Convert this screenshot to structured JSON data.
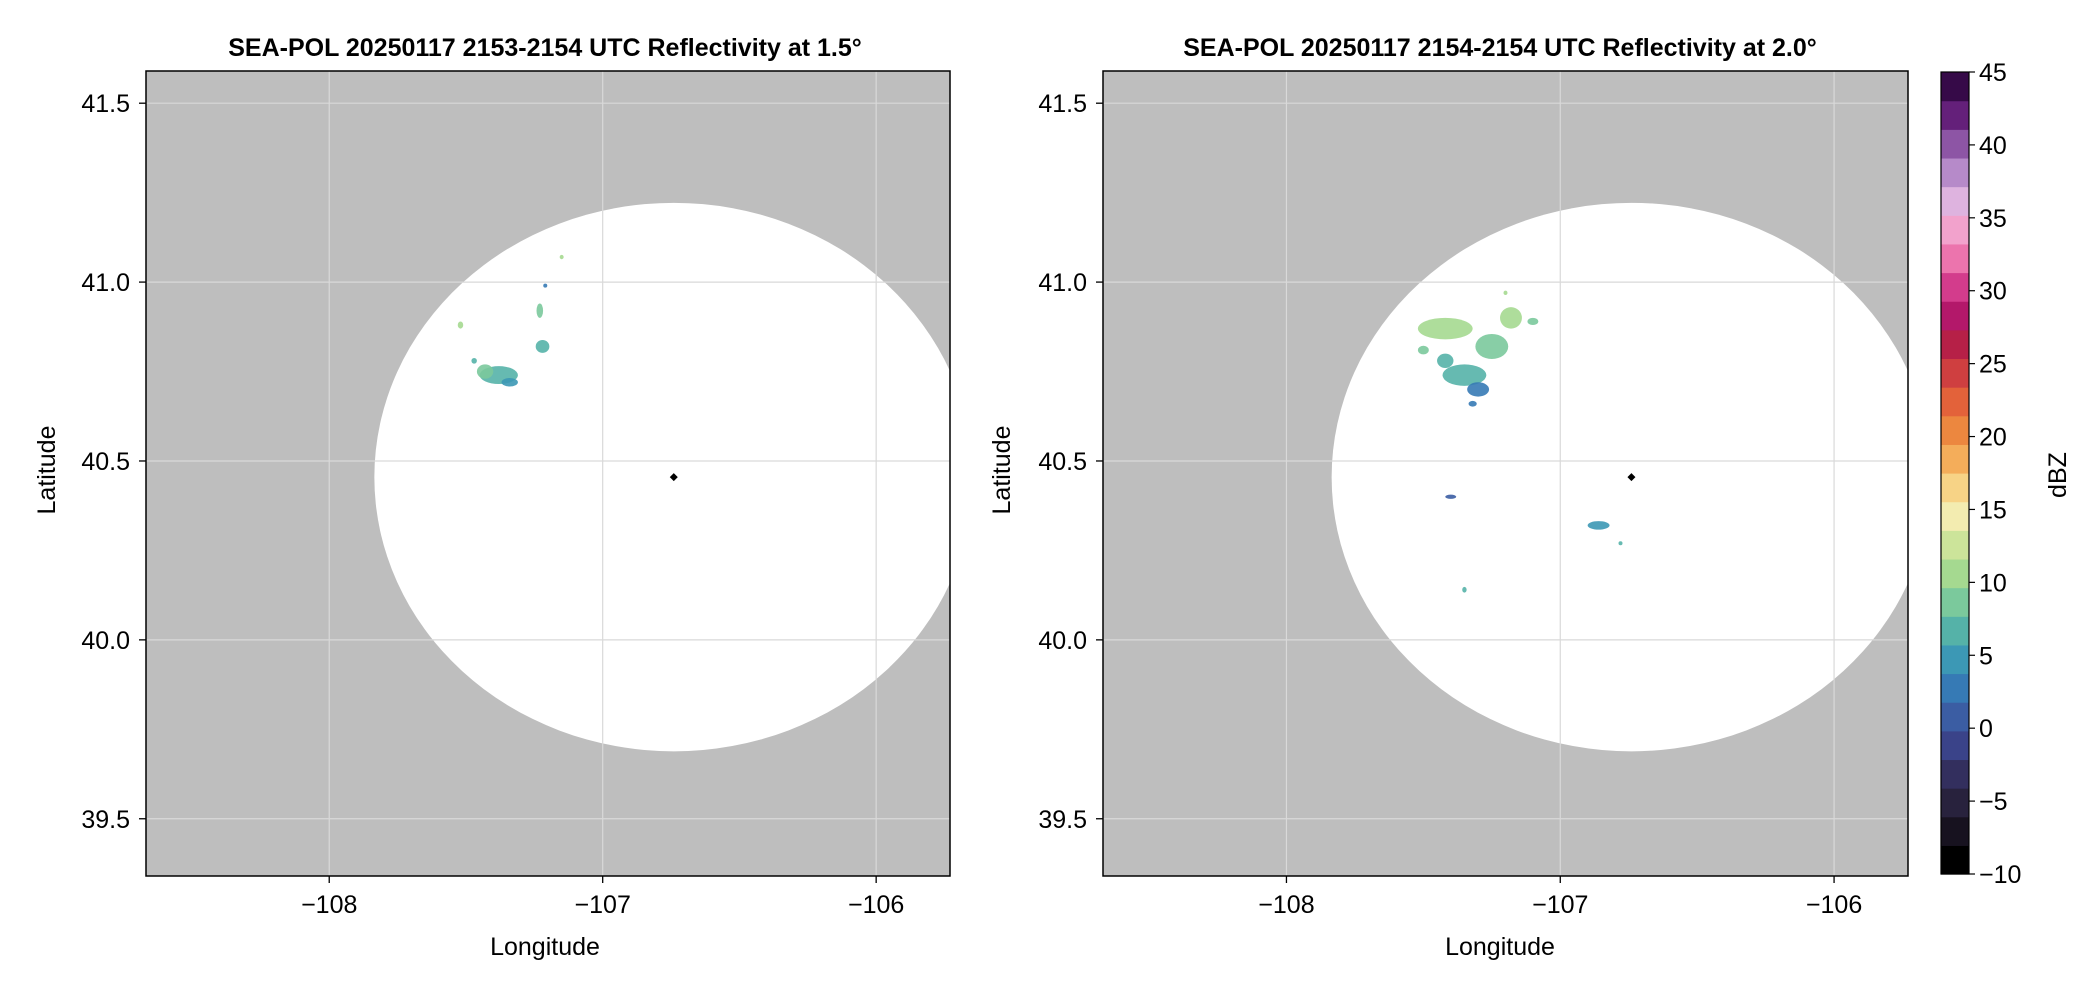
{
  "chart_data": [
    {
      "type": "heatmap",
      "title": "SEA-POL 20250117 2153-2154 UTC Reflectivity at 1.5°",
      "xlabel": "Longitude",
      "ylabel": "Latitude",
      "xlim": [
        -108.67,
        -105.73
      ],
      "ylim": [
        39.34,
        41.59
      ],
      "xticks": [
        -108,
        -107,
        -106
      ],
      "xtick_labels": [
        "−108",
        "−107",
        "−106"
      ],
      "yticks": [
        39.5,
        40.0,
        40.5,
        41.0,
        41.5
      ],
      "ytick_labels": [
        "39.5",
        "40.0",
        "40.5",
        "41.0",
        "41.5"
      ],
      "grid": true,
      "coverage": {
        "center_lon": -106.74,
        "center_lat": 40.455,
        "radius_deg": 1.095
      },
      "radar_site": {
        "lon": -106.74,
        "lat": 40.455
      },
      "echoes": [
        {
          "lon": -107.38,
          "lat": 40.74,
          "rlon": 0.07,
          "rlat": 0.025,
          "dbz": 11
        },
        {
          "lon": -107.43,
          "lat": 40.75,
          "rlon": 0.03,
          "rlat": 0.02,
          "dbz": 13
        },
        {
          "lon": -107.34,
          "lat": 40.72,
          "rlon": 0.03,
          "rlat": 0.012,
          "dbz": 8
        },
        {
          "lon": -107.22,
          "lat": 40.82,
          "rlon": 0.025,
          "rlat": 0.018,
          "dbz": 12
        },
        {
          "lon": -107.23,
          "lat": 40.92,
          "rlon": 0.012,
          "rlat": 0.02,
          "dbz": 13
        },
        {
          "lon": -107.52,
          "lat": 40.88,
          "rlon": 0.01,
          "rlat": 0.01,
          "dbz": 15
        },
        {
          "lon": -107.47,
          "lat": 40.78,
          "rlon": 0.01,
          "rlat": 0.008,
          "dbz": 10
        },
        {
          "lon": -107.15,
          "lat": 41.07,
          "rlon": 0.006,
          "rlat": 0.006,
          "dbz": 17
        },
        {
          "lon": -107.21,
          "lat": 40.99,
          "rlon": 0.005,
          "rlat": 0.005,
          "dbz": 7
        }
      ]
    },
    {
      "type": "heatmap",
      "title": "SEA-POL 20250117 2154-2154 UTC Reflectivity at 2.0°",
      "xlabel": "Longitude",
      "ylabel": "",
      "xlim": [
        -108.67,
        -105.73
      ],
      "ylim": [
        39.34,
        41.59
      ],
      "xticks": [
        -108,
        -107,
        -106
      ],
      "xtick_labels": [
        "−108",
        "−107",
        "−106"
      ],
      "yticks": [
        39.5,
        40.0,
        40.5,
        41.0,
        41.5
      ],
      "ytick_labels": [
        "39.5",
        "40.0",
        "40.5",
        "41.0",
        "41.5"
      ],
      "grid": true,
      "coverage": {
        "center_lon": -106.74,
        "center_lat": 40.455,
        "radius_deg": 1.095
      },
      "radar_site": {
        "lon": -106.74,
        "lat": 40.455
      },
      "echoes": [
        {
          "lon": -107.42,
          "lat": 40.87,
          "rlon": 0.1,
          "rlat": 0.03,
          "dbz": 15
        },
        {
          "lon": -107.25,
          "lat": 40.82,
          "rlon": 0.06,
          "rlat": 0.035,
          "dbz": 14
        },
        {
          "lon": -107.18,
          "lat": 40.9,
          "rlon": 0.04,
          "rlat": 0.03,
          "dbz": 16
        },
        {
          "lon": -107.35,
          "lat": 40.74,
          "rlon": 0.08,
          "rlat": 0.03,
          "dbz": 10
        },
        {
          "lon": -107.3,
          "lat": 40.7,
          "rlon": 0.04,
          "rlat": 0.02,
          "dbz": 7
        },
        {
          "lon": -107.42,
          "lat": 40.78,
          "rlon": 0.03,
          "rlat": 0.02,
          "dbz": 12
        },
        {
          "lon": -107.5,
          "lat": 40.81,
          "rlon": 0.02,
          "rlat": 0.012,
          "dbz": 14
        },
        {
          "lon": -107.1,
          "lat": 40.89,
          "rlon": 0.02,
          "rlat": 0.01,
          "dbz": 13
        },
        {
          "lon": -107.32,
          "lat": 40.66,
          "rlon": 0.015,
          "rlat": 0.008,
          "dbz": 5
        },
        {
          "lon": -107.4,
          "lat": 40.4,
          "rlon": 0.02,
          "rlat": 0.006,
          "dbz": 4
        },
        {
          "lon": -106.86,
          "lat": 40.32,
          "rlon": 0.04,
          "rlat": 0.012,
          "dbz": 9
        },
        {
          "lon": -106.78,
          "lat": 40.27,
          "rlon": 0.005,
          "rlat": 0.005,
          "dbz": 12
        },
        {
          "lon": -107.35,
          "lat": 40.14,
          "rlon": 0.008,
          "rlat": 0.008,
          "dbz": 11
        },
        {
          "lon": -107.2,
          "lat": 40.97,
          "rlon": 0.006,
          "rlat": 0.006,
          "dbz": 15
        }
      ]
    }
  ],
  "colorbar": {
    "label": "dBZ",
    "min": -10,
    "max": 45,
    "step": 2.5,
    "ticks": [
      -10,
      -5,
      0,
      5,
      10,
      15,
      20,
      25,
      30,
      35,
      40,
      45
    ],
    "tick_labels": [
      "−10",
      "−5",
      "0",
      "5",
      "10",
      "15",
      "20",
      "25",
      "30",
      "35",
      "40",
      "45"
    ],
    "colors": [
      "#000000",
      "#17121f",
      "#28223d",
      "#332f5e",
      "#3a4389",
      "#3b5da3",
      "#367ab5",
      "#3c98b5",
      "#55b2a8",
      "#7bc99c",
      "#a5d990",
      "#cce49a",
      "#f3ecb0",
      "#f7d386",
      "#f4ad5a",
      "#ec873f",
      "#e3623a",
      "#cf3f40",
      "#b62047",
      "#b3186a",
      "#d33c8c",
      "#ec74ad",
      "#f2a2cc",
      "#deb3df",
      "#b68ac9",
      "#8d55a5",
      "#64207a",
      "#360a48"
    ]
  },
  "style": {
    "outside_coverage_color": "#bebebe",
    "grid_color": "#d9d9d9",
    "site_color": "#000000"
  }
}
